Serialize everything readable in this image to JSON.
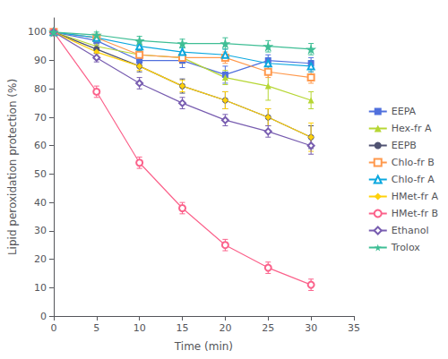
{
  "chart_data": {
    "type": "line",
    "x": [
      0,
      5,
      10,
      15,
      20,
      25,
      30
    ],
    "xlabel": "Time (min)",
    "ylabel": "Lipid peroxidation protection (%)",
    "xlim": [
      0,
      35
    ],
    "ylim": [
      0,
      105
    ],
    "xticks": [
      0,
      5,
      10,
      15,
      20,
      25,
      30,
      35
    ],
    "yticks": [
      0,
      10,
      20,
      30,
      40,
      50,
      60,
      70,
      80,
      90,
      100
    ],
    "grid": false,
    "legend": "right",
    "series": [
      {
        "name": "EEPA",
        "marker": "square",
        "line_style": "solid",
        "values": [
          100,
          97,
          90,
          90,
          85,
          90,
          89
        ],
        "errors": [
          0,
          1.0,
          2.0,
          2.5,
          3.0,
          2.0,
          2.0
        ]
      },
      {
        "name": "Hex-fr A",
        "marker": "triangle",
        "line_style": "solid",
        "values": [
          100,
          95,
          92,
          91,
          84,
          81,
          76
        ],
        "errors": [
          0,
          1.0,
          2.0,
          2.0,
          2.5,
          5.0,
          3.0
        ]
      },
      {
        "name": "EEPB",
        "marker": "circle",
        "line_style": "solid",
        "values": [
          100,
          94,
          88,
          81,
          76,
          70,
          63
        ],
        "errors": [
          0,
          1.5,
          2.0,
          2.5,
          3.0,
          3.0,
          4.0
        ]
      },
      {
        "name": "Chlo-fr B",
        "marker": "hollow-square",
        "line_style": "solid",
        "values": [
          100,
          98,
          92,
          91,
          91,
          86,
          84
        ],
        "errors": [
          0,
          1.0,
          1.5,
          2.0,
          2.0,
          2.0,
          2.0
        ]
      },
      {
        "name": "Chlo-fr A",
        "marker": "hollow-triangle",
        "line_style": "solid",
        "values": [
          100,
          98,
          95,
          93,
          92,
          89,
          88
        ],
        "errors": [
          0,
          1.0,
          1.5,
          1.5,
          2.0,
          2.0,
          2.0
        ]
      },
      {
        "name": "HMet-fr A",
        "marker": "diamond",
        "line_style": "solid",
        "values": [
          100,
          93,
          88,
          81,
          76,
          70,
          63
        ],
        "errors": [
          0,
          1.5,
          1.5,
          2.0,
          3.0,
          3.0,
          5.0
        ]
      },
      {
        "name": "HMet-fr B",
        "marker": "hollow-circle",
        "line_style": "solid",
        "values": [
          100,
          79,
          54,
          38,
          25,
          17,
          11
        ],
        "errors": [
          0,
          2.0,
          2.0,
          2.0,
          2.0,
          2.0,
          2.0
        ]
      },
      {
        "name": "Ethanol",
        "marker": "hollow-diamond",
        "line_style": "solid",
        "values": [
          100,
          91,
          82,
          75,
          69,
          65,
          60
        ],
        "errors": [
          0,
          1.5,
          2.0,
          2.0,
          2.0,
          2.0,
          3.0
        ]
      },
      {
        "name": "Trolox",
        "marker": "star",
        "line_style": "solid",
        "values": [
          100,
          99,
          97,
          96,
          96,
          95,
          94
        ],
        "errors": [
          0,
          1.0,
          1.5,
          1.5,
          2.0,
          2.0,
          2.0
        ]
      }
    ]
  }
}
